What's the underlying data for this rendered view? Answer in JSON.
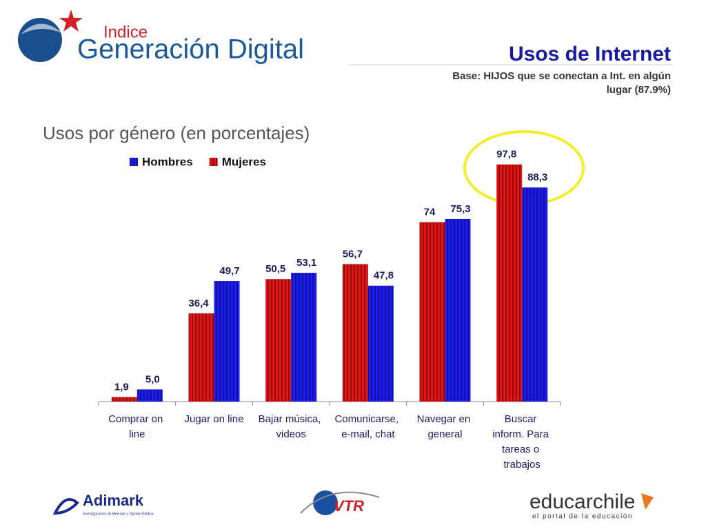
{
  "header": {
    "logo_small": "Indice",
    "logo_big": "Generación Digital",
    "title": "Usos de Internet",
    "subtitle_lines": [
      "Base: HIJOS que se conectan a Int. en algún",
      "lugar (87.9%)"
    ]
  },
  "chart_data": {
    "type": "bar",
    "title": "Usos por género (en porcentajes)",
    "categories": [
      "Comprar on line",
      "Jugar on line",
      "Bajar música, videos",
      "Comunicarse, e-mail, chat",
      "Navegar en general",
      "Buscar inform. Para tareas o trabajos"
    ],
    "series": [
      {
        "name": "Mujeres",
        "color": "#e31414",
        "values": [
          1.9,
          36.4,
          50.5,
          56.7,
          74,
          97.8
        ],
        "value_labels": [
          "1,9",
          "36,4",
          "50,5",
          "56,7",
          "74",
          "97,8"
        ]
      },
      {
        "name": "Hombres",
        "color": "#1c1cf0",
        "values": [
          5.0,
          49.7,
          53.1,
          47.8,
          75.3,
          88.3
        ],
        "value_labels": [
          "5,0",
          "49,7",
          "53,1",
          "47,8",
          "75,3",
          "88,3"
        ]
      }
    ],
    "ylim": [
      0,
      100
    ]
  },
  "footer": {
    "adimark": "Adimark",
    "adimark_sub": "Investigaciones de Mercado y Opinión Pública",
    "vtr": "VTR",
    "educar": "educarchile",
    "educar_sub": "el portal de la educación"
  }
}
